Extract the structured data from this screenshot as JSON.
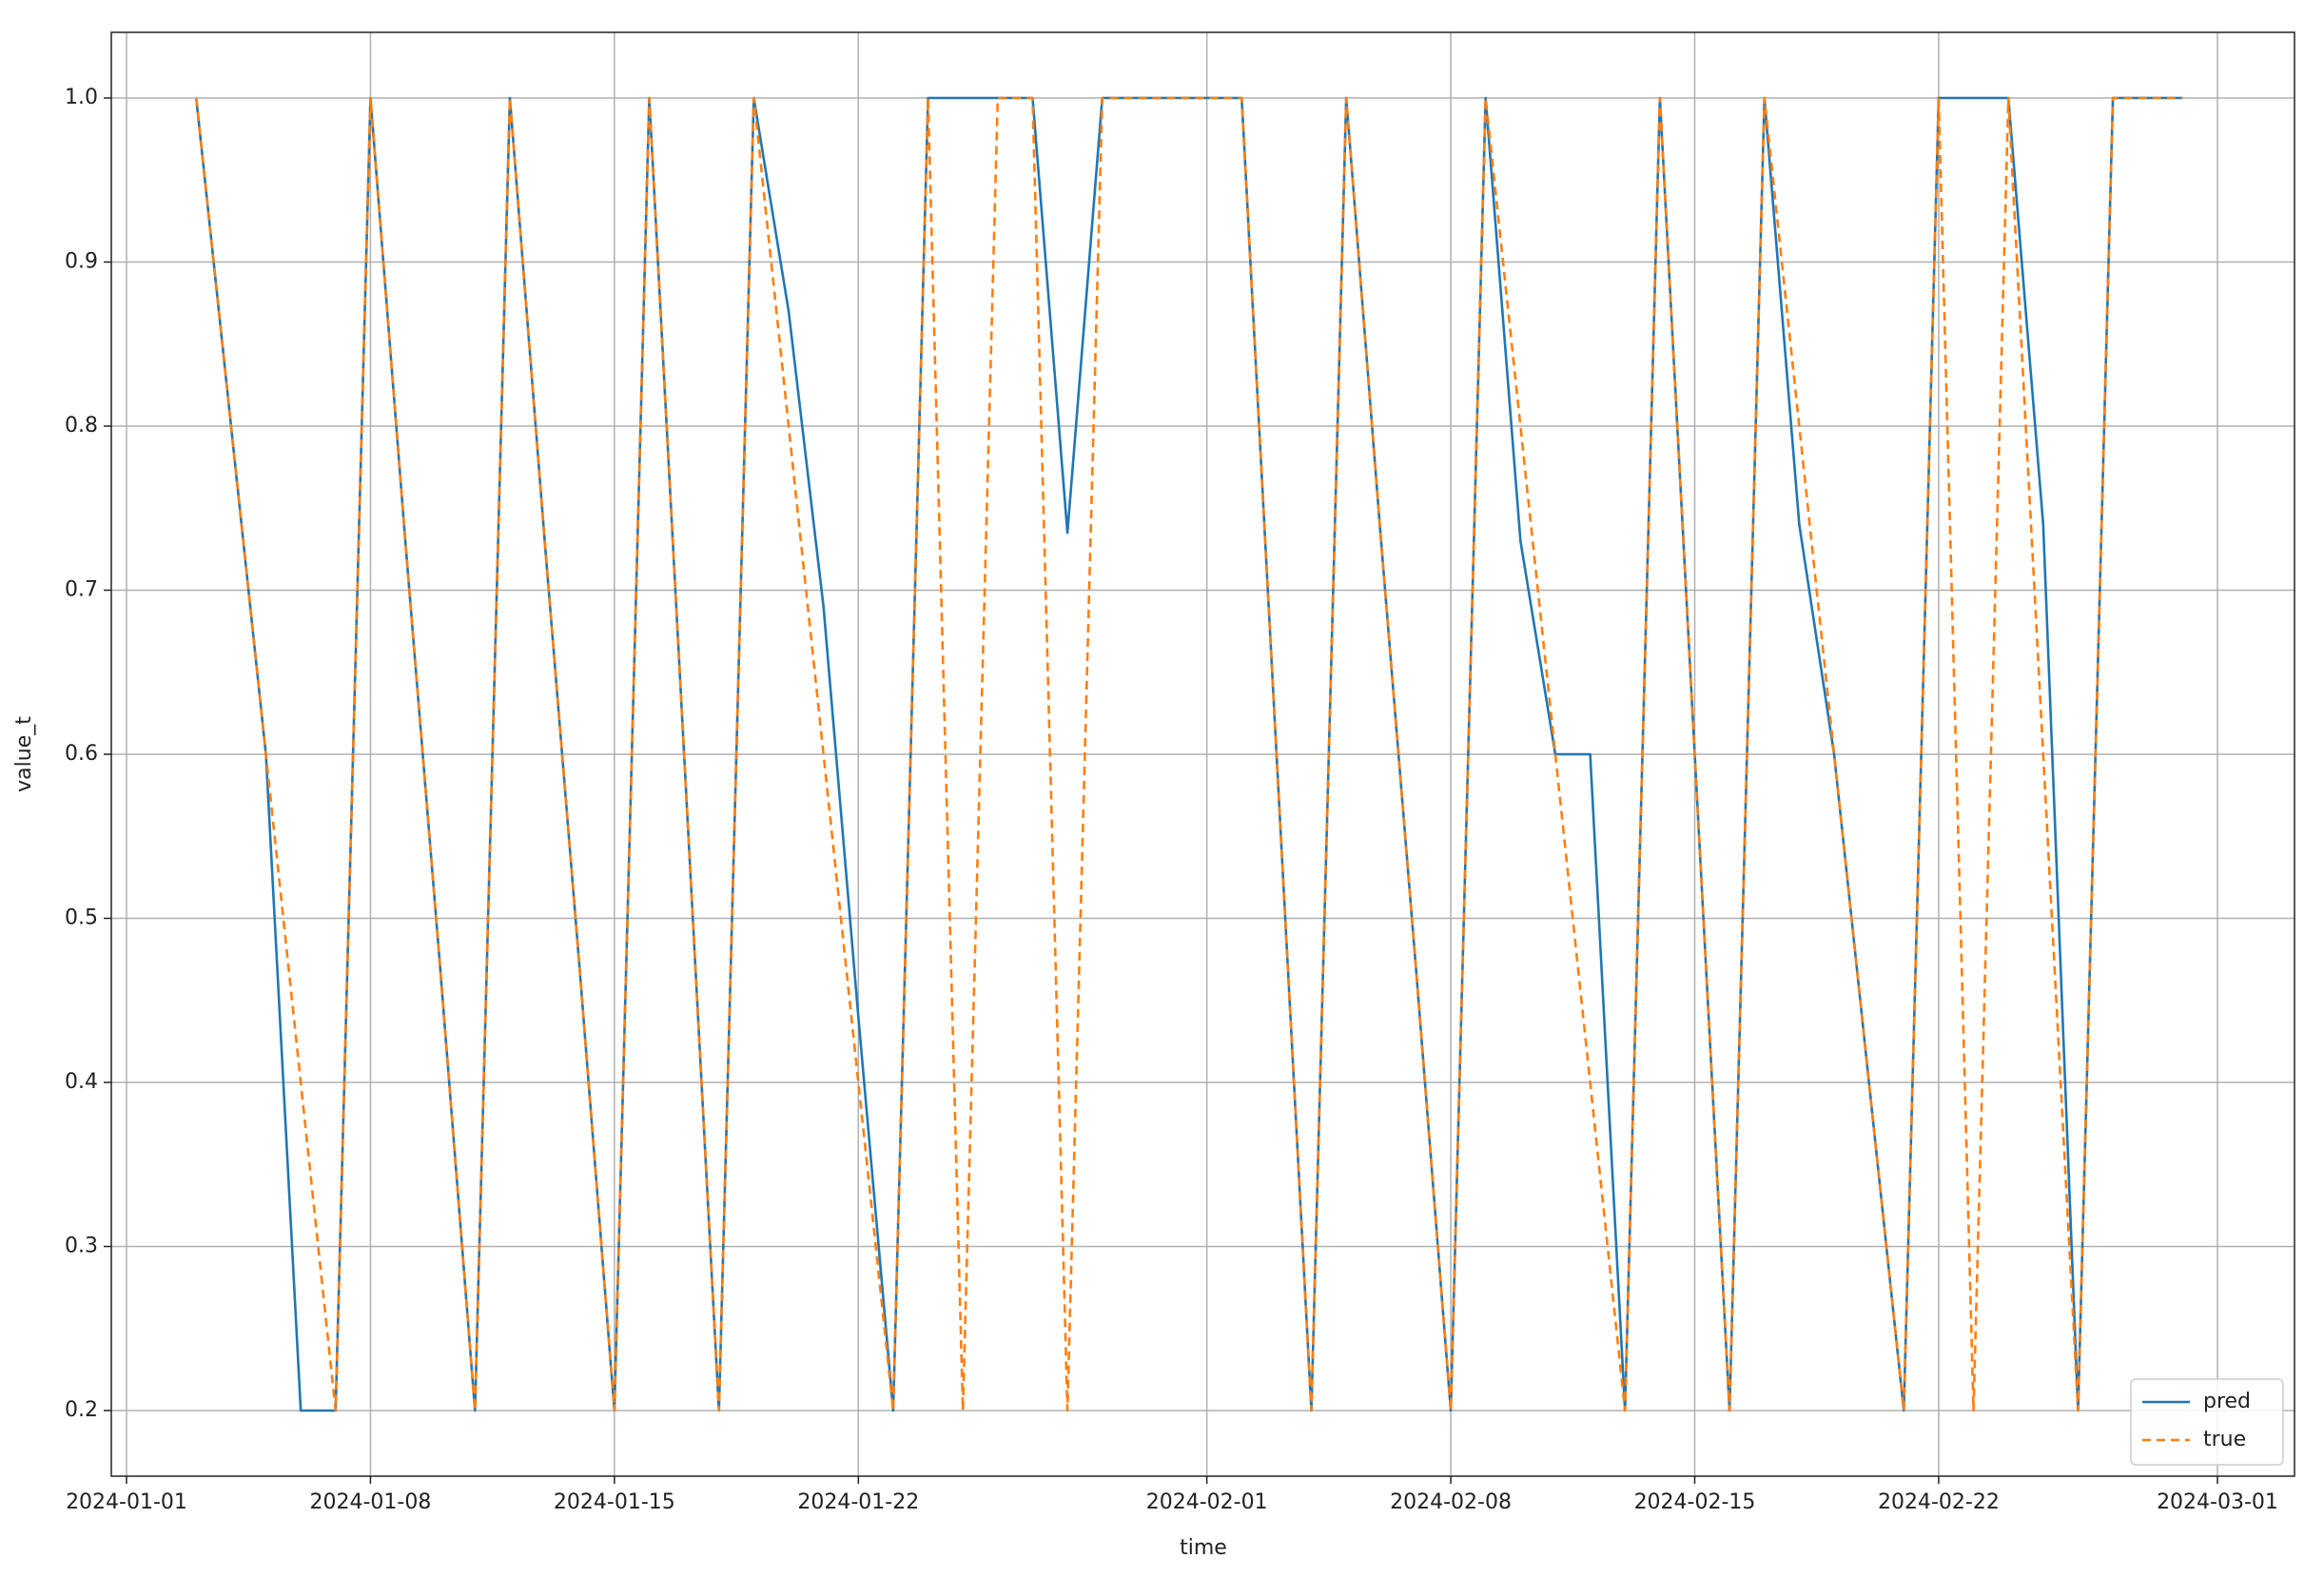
{
  "chart_data": {
    "type": "line",
    "xlabel": "time",
    "ylabel": "value_t",
    "x": [
      "2024-01-03",
      "2024-01-04",
      "2024-01-05",
      "2024-01-06",
      "2024-01-07",
      "2024-01-08",
      "2024-01-09",
      "2024-01-10",
      "2024-01-11",
      "2024-01-12",
      "2024-01-13",
      "2024-01-14",
      "2024-01-15",
      "2024-01-16",
      "2024-01-17",
      "2024-01-18",
      "2024-01-19",
      "2024-01-20",
      "2024-01-21",
      "2024-01-22",
      "2024-01-23",
      "2024-01-24",
      "2024-01-25",
      "2024-01-26",
      "2024-01-27",
      "2024-01-28",
      "2024-01-29",
      "2024-01-30",
      "2024-01-31",
      "2024-02-01",
      "2024-02-02",
      "2024-02-03",
      "2024-02-04",
      "2024-02-05",
      "2024-02-06",
      "2024-02-07",
      "2024-02-08",
      "2024-02-09",
      "2024-02-10",
      "2024-02-11",
      "2024-02-12",
      "2024-02-13",
      "2024-02-14",
      "2024-02-15",
      "2024-02-16",
      "2024-02-17",
      "2024-02-18",
      "2024-02-19",
      "2024-02-20",
      "2024-02-21",
      "2024-02-22",
      "2024-02-23",
      "2024-02-24",
      "2024-02-25",
      "2024-02-26",
      "2024-02-27",
      "2024-02-28",
      "2024-02-29"
    ],
    "series": [
      {
        "name": "pred",
        "color": "#1f77b4",
        "dash": false,
        "values": [
          1.0,
          0.8,
          0.6,
          0.2,
          0.2,
          1.0,
          0.73,
          0.47,
          0.2,
          1.0,
          0.73,
          0.47,
          0.2,
          1.0,
          0.6,
          0.2,
          1.0,
          0.87,
          0.69,
          0.44,
          0.2,
          1.0,
          1.0,
          1.0,
          1.0,
          0.735,
          1.0,
          1.0,
          1.0,
          1.0,
          1.0,
          0.6,
          0.2,
          1.0,
          0.73,
          0.47,
          0.2,
          1.0,
          0.73,
          0.6,
          0.6,
          0.2,
          1.0,
          0.6,
          0.2,
          1.0,
          0.74,
          0.6,
          0.4,
          0.2,
          1.0,
          1.0,
          1.0,
          0.74,
          0.2,
          1.0,
          1.0,
          1.0
        ]
      },
      {
        "name": "true",
        "color": "#ff7f0e",
        "dash": true,
        "values": [
          1.0,
          0.8,
          0.6,
          0.4,
          0.2,
          1.0,
          0.73,
          0.47,
          0.2,
          1.0,
          0.73,
          0.47,
          0.2,
          1.0,
          0.6,
          0.2,
          1.0,
          0.8,
          0.6,
          0.4,
          0.2,
          1.0,
          0.2,
          1.0,
          1.0,
          0.2,
          1.0,
          1.0,
          1.0,
          1.0,
          1.0,
          0.6,
          0.2,
          1.0,
          0.73,
          0.47,
          0.2,
          1.0,
          0.8,
          0.6,
          0.4,
          0.2,
          1.0,
          0.6,
          0.2,
          1.0,
          0.8,
          0.6,
          0.4,
          0.2,
          1.0,
          0.2,
          1.0,
          0.6,
          0.2,
          1.0,
          1.0,
          1.0
        ]
      }
    ],
    "xlim": [
      "2024-01-01",
      "2024-03-01"
    ],
    "xticks": [
      "2024-01-01",
      "2024-01-08",
      "2024-01-15",
      "2024-01-22",
      "2024-02-01",
      "2024-02-08",
      "2024-02-15",
      "2024-02-22",
      "2024-03-01"
    ],
    "ylim": [
      0.16,
      1.04
    ],
    "yticks": [
      0.2,
      0.3,
      0.4,
      0.5,
      0.6,
      0.7,
      0.8,
      0.9,
      {
        "value": 1.0,
        "label": "1.0"
      }
    ],
    "grid": true,
    "legend": "lower right"
  }
}
